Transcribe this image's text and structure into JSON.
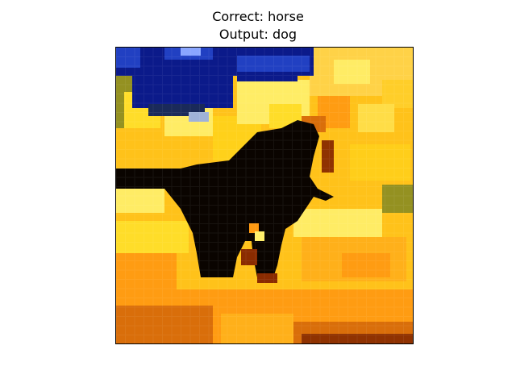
{
  "figure": {
    "correct_label_text": "Correct: horse",
    "output_label_text": "Output: dog"
  },
  "image": {
    "subject": "black horse silhouette",
    "palette": {
      "sky_deep": "#0b1a8a",
      "sky_blue": "#2140c2",
      "sky_light": "#8aa6ff",
      "gold_bright": "#ffd21a",
      "gold_pale": "#ffef6a",
      "orange": "#ff9a12",
      "orange_dark": "#d86a0a",
      "rust": "#8a2b00",
      "olive": "#8f8f22",
      "silhouette": "#0a0400"
    }
  }
}
